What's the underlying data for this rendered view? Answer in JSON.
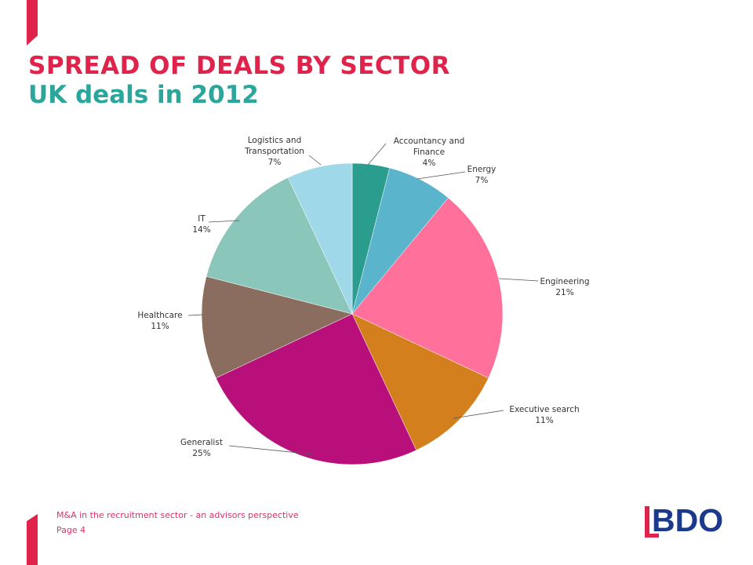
{
  "title": "SPREAD OF DEALS BY SECTOR",
  "subtitle": "UK deals in 2012",
  "footer": {
    "caption": "M&A in the recruitment  sector - an advisors perspective",
    "page": "Page 4"
  },
  "logo": {
    "text": "BDO",
    "icon": "bdo-logo"
  },
  "colors": {
    "accent": "#e0234b",
    "subtitle": "#2aa69b",
    "logo": "#1b3a8c"
  },
  "chart_data": {
    "type": "pie",
    "start_angle": "12 o'clock",
    "direction": "clockwise",
    "slices": [
      {
        "name": "Accountancy  and Finance",
        "lines": [
          "Accountancy  and",
          "Finance"
        ],
        "value": 4,
        "label": "4%",
        "color": "#2a9d8f"
      },
      {
        "name": "Energy",
        "lines": [
          "Energy"
        ],
        "value": 7,
        "label": "7%",
        "color": "#5ab4cc"
      },
      {
        "name": "Engineering",
        "lines": [
          "Engineering"
        ],
        "value": 21,
        "label": "21%",
        "color": "#ff709b"
      },
      {
        "name": "Executive  search",
        "lines": [
          "Executive  search"
        ],
        "value": 11,
        "label": "11%",
        "color": "#d47f1e"
      },
      {
        "name": "Generalist",
        "lines": [
          "Generalist"
        ],
        "value": 25,
        "label": "25%",
        "color": "#b80f7a"
      },
      {
        "name": "Healthcare",
        "lines": [
          "Healthcare"
        ],
        "value": 11,
        "label": "11%",
        "color": "#8a6d5e"
      },
      {
        "name": "IT",
        "lines": [
          "IT"
        ],
        "value": 14,
        "label": "14%",
        "color": "#8bc6bb"
      },
      {
        "name": "Logistics  and Transportation",
        "lines": [
          "Logistics  and",
          "Transportation"
        ],
        "value": 7,
        "label": "7%",
        "color": "#9fd8e8"
      }
    ]
  }
}
